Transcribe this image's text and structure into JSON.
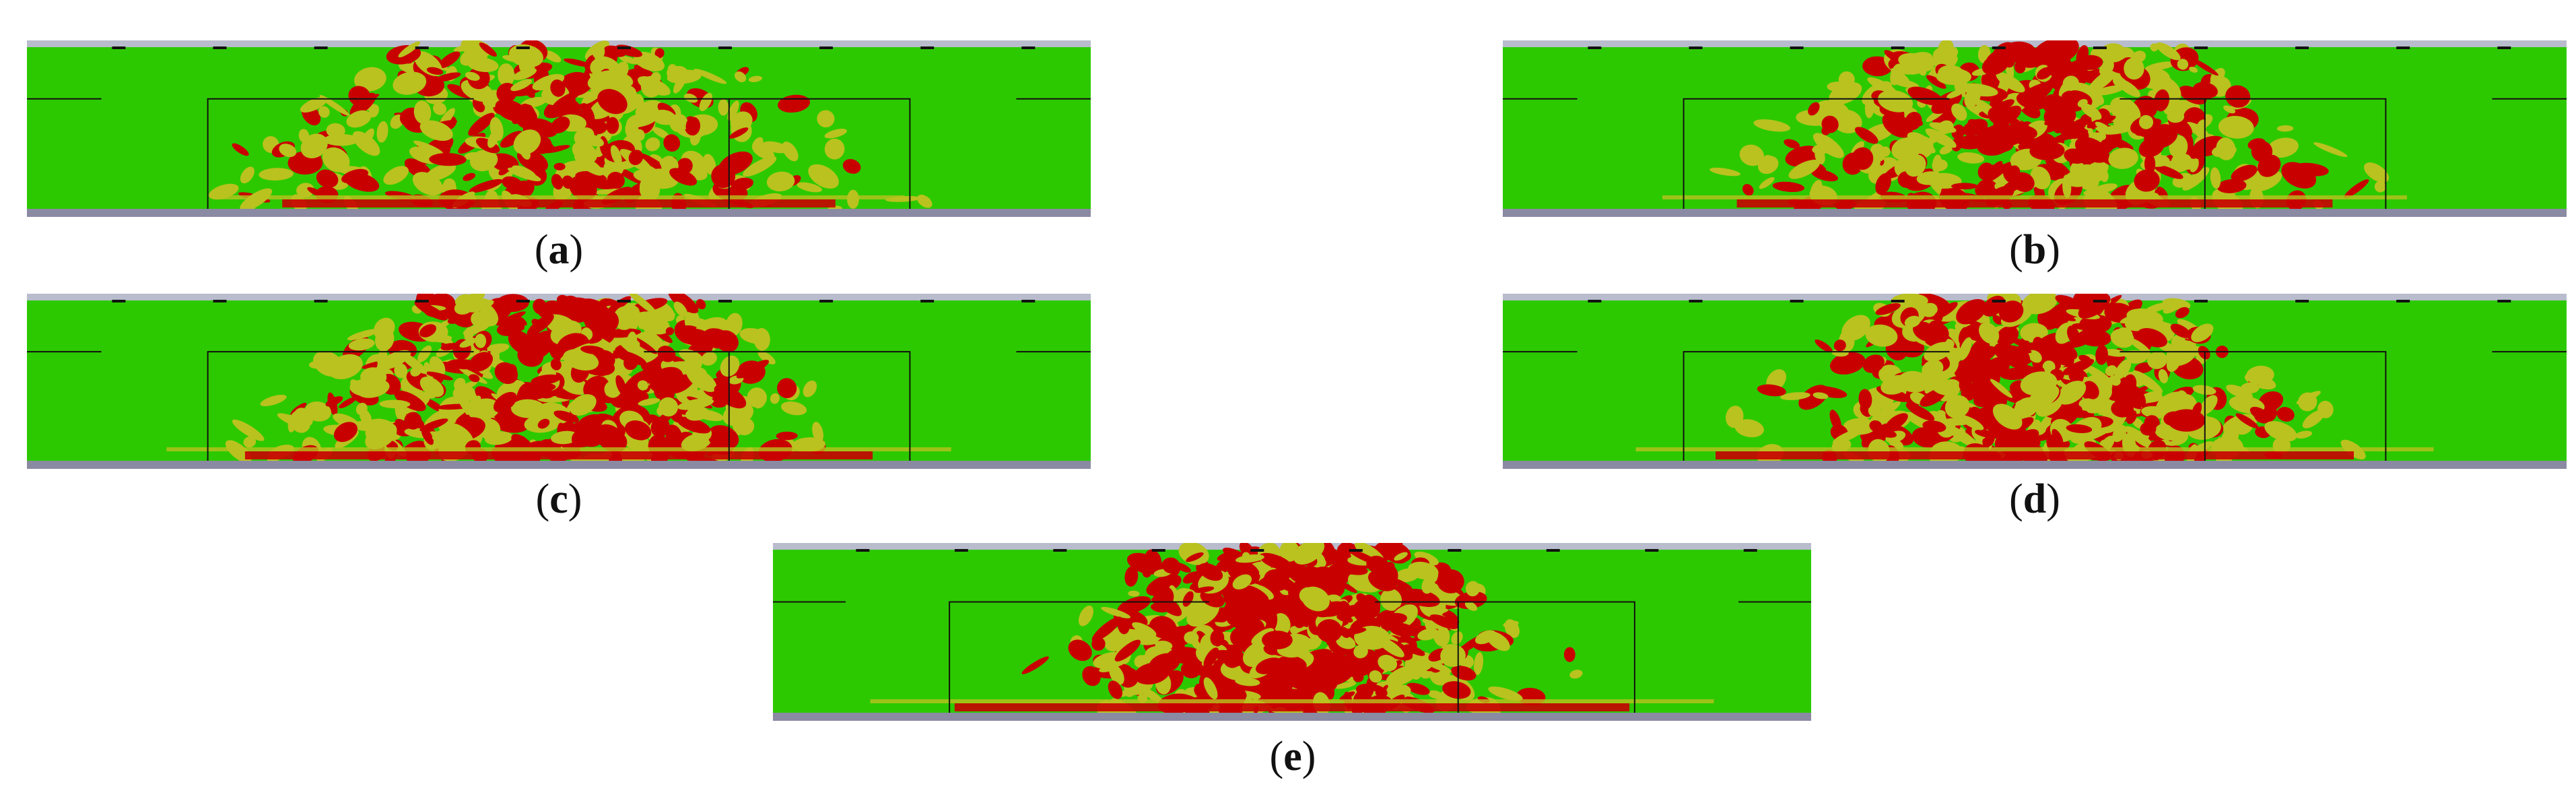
{
  "colors": {
    "intact": "#2dc900",
    "partial": "#b9c21e",
    "damaged": "#c90000",
    "cap_top": "#b8bccc",
    "cap_bottom": "#8a8aa3",
    "rebar": "#111111"
  },
  "panels": [
    {
      "id": "a",
      "label": "a",
      "severity": 0.35
    },
    {
      "id": "b",
      "label": "b",
      "severity": 0.55
    },
    {
      "id": "c",
      "label": "c",
      "severity": 0.7
    },
    {
      "id": "d",
      "label": "d",
      "severity": 0.75
    },
    {
      "id": "e",
      "label": "e",
      "severity": 1.0
    }
  ]
}
